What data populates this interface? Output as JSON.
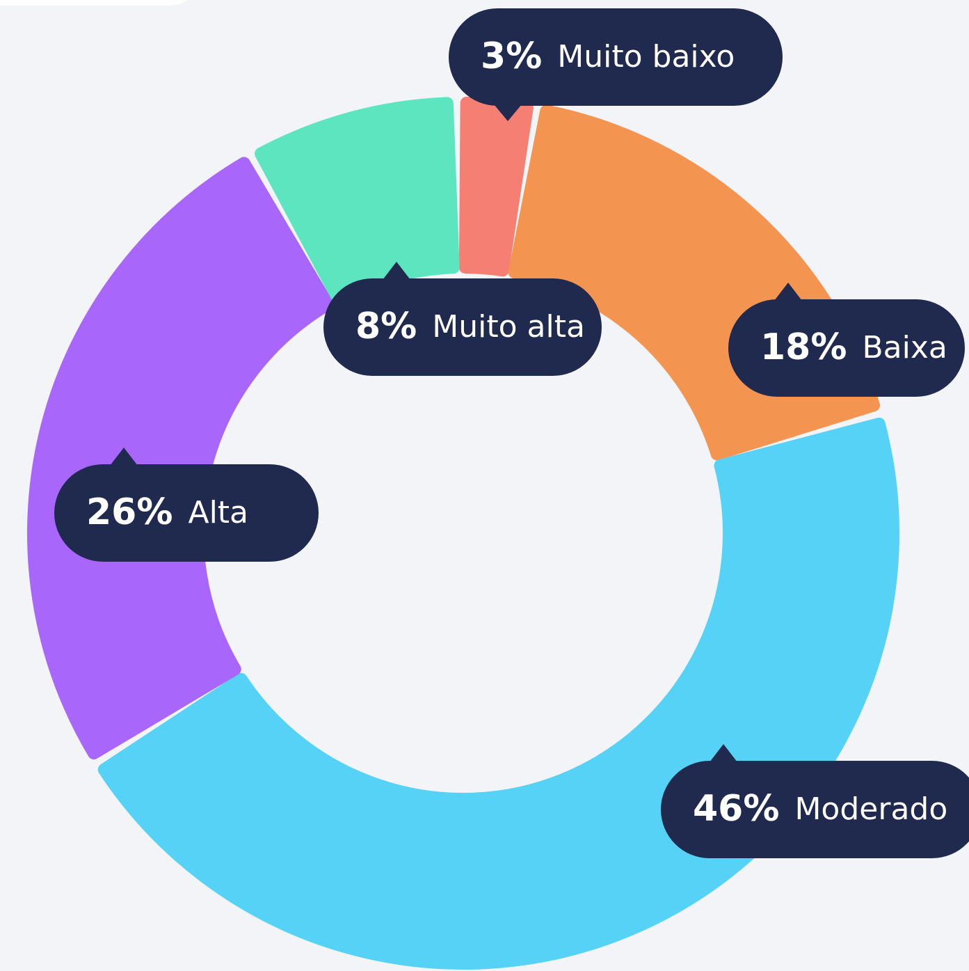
{
  "chart_data": {
    "type": "donut",
    "categories": [
      "Muito baixo",
      "Baixa",
      "Moderado",
      "Alta",
      "Muito alta"
    ],
    "values": [
      3,
      18,
      46,
      26,
      8
    ],
    "value_labels": [
      "3%",
      "18%",
      "46%",
      "26%",
      "8%"
    ],
    "colors": [
      "#f47f72",
      "#f39551",
      "#55d2f5",
      "#a866fb",
      "#5ce5bf"
    ]
  }
}
